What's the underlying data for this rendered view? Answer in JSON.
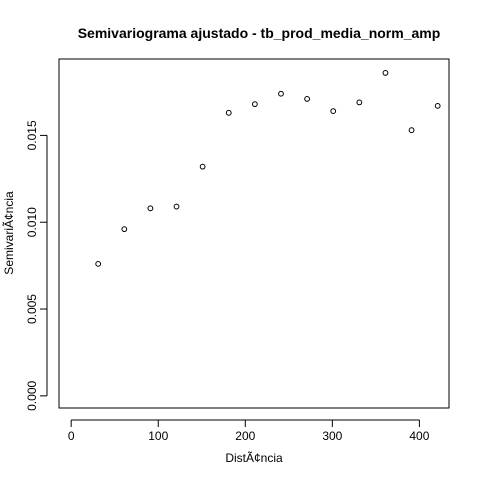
{
  "chart_data": {
    "type": "scatter",
    "title": "Semivariograma ajustado - tb_prod_media_norm_amp",
    "xlabel": "DistÃ¢ncia",
    "ylabel": "SemivariÃ¢ncia",
    "xlim": [
      -14,
      434
    ],
    "ylim": [
      -0.0007,
      0.0194
    ],
    "xticks": [
      0,
      100,
      200,
      300,
      400
    ],
    "xtick_labels": [
      "0",
      "100",
      "200",
      "300",
      "400"
    ],
    "yticks": [
      0,
      0.005,
      0.01,
      0.015
    ],
    "ytick_labels": [
      "0.000",
      "0.005",
      "0.010",
      "0.015"
    ],
    "grid": false,
    "marker": "open-circle",
    "points": [
      {
        "x": 31,
        "y": 0.0076
      },
      {
        "x": 61,
        "y": 0.0096
      },
      {
        "x": 91,
        "y": 0.0108
      },
      {
        "x": 121,
        "y": 0.0109
      },
      {
        "x": 151,
        "y": 0.0132
      },
      {
        "x": 181,
        "y": 0.0163
      },
      {
        "x": 211,
        "y": 0.0168
      },
      {
        "x": 241,
        "y": 0.0174
      },
      {
        "x": 271,
        "y": 0.0171
      },
      {
        "x": 301,
        "y": 0.0164
      },
      {
        "x": 331,
        "y": 0.0169
      },
      {
        "x": 361,
        "y": 0.0186
      },
      {
        "x": 391,
        "y": 0.0153
      },
      {
        "x": 421,
        "y": 0.0167
      }
    ]
  }
}
